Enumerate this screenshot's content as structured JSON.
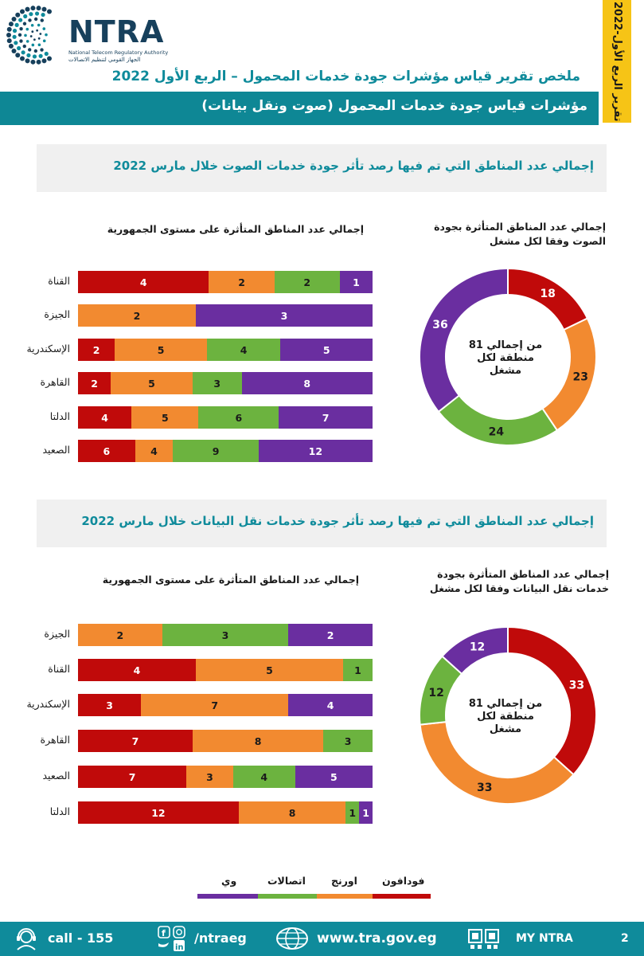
{
  "header": {
    "logo_text": "NTRA",
    "logo_sub_en": "National Telecom Regulatory Authority",
    "logo_sub_ar": "الجهاز القومي لتنظيم الاتصالات",
    "report_title": "ملخص تقرير قياس مؤشرات جودة خدمات المحمول – الربع الأول 2022",
    "bar_title": "مؤشرات قياس جودة خدمات المحمول (صوت ونقل بيانات)",
    "side_tab": "تقرير الربع الأول-2022"
  },
  "colors": {
    "vodafone": "#c00a0a",
    "orange": "#f28a30",
    "etisalat": "#6cb33f",
    "we": "#6a2ea0",
    "teal": "#0f8b9b"
  },
  "voice": {
    "section_title": "إجمالي عدد المناطق التي تم فيها رصد تأثر جودة خدمات الصوت خلال مارس 2022",
    "bar_chart_title": "إجمالي عدد المناطق المتأثرة على مستوى الجمهورية",
    "donut_title": "إجمالي عدد المناطق المتأثرة بجودة الصوت وفقا لكل مشغل",
    "donut_center": [
      "من إجمالي 81",
      "منطقة لكل",
      "مشغل"
    ]
  },
  "data": {
    "section_title": "إجمالي عدد المناطق التي تم فيها رصد تأثر جودة خدمات نقل البيانات خلال مارس 2022",
    "bar_chart_title": "إجمالي عدد المناطق المتأثرة على مستوى الجمهورية",
    "donut_title": "إجمالي عدد المناطق المتأثرة بجودة خدمات نقل البيانات وفقا لكل مشغل",
    "donut_center": [
      "من إجمالي 81",
      "منطقة لكل",
      "مشغل"
    ]
  },
  "legend": {
    "vodafone": "فودافون",
    "orange": "اورنج",
    "etisalat": "اتصالات",
    "we": "وي"
  },
  "footer": {
    "call": "call - 155",
    "social": "/ntraeg",
    "website": "www.tra.gov.eg",
    "app": "MY NTRA",
    "page_number": "2"
  },
  "chart_data": [
    {
      "type": "bar",
      "orientation": "horizontal-stacked",
      "title": "إجمالي عدد المناطق المتأثرة على مستوى الجمهورية",
      "categories": [
        "القناة",
        "الجيزة",
        "الإسكندرية",
        "القاهرة",
        "الدلتا",
        "الصعيد"
      ],
      "series": [
        {
          "name": "فودافون",
          "values": [
            4,
            0,
            2,
            2,
            4,
            6
          ]
        },
        {
          "name": "اورنج",
          "values": [
            2,
            2,
            5,
            5,
            5,
            4
          ]
        },
        {
          "name": "اتصالات",
          "values": [
            2,
            0,
            4,
            3,
            6,
            9
          ]
        },
        {
          "name": "وي",
          "values": [
            1,
            3,
            5,
            8,
            7,
            12
          ]
        }
      ]
    },
    {
      "type": "pie",
      "title": "إجمالي عدد المناطق المتأثرة بجودة الصوت وفقا لكل مشغل",
      "categories": [
        "فودافون",
        "اورنج",
        "اتصالات",
        "وي"
      ],
      "values": [
        18,
        23,
        24,
        36
      ]
    },
    {
      "type": "bar",
      "orientation": "horizontal-stacked",
      "title": "إجمالي عدد المناطق المتأثرة على مستوى الجمهورية",
      "categories": [
        "الجيزة",
        "القناة",
        "الإسكندرية",
        "القاهرة",
        "الصعيد",
        "الدلتا"
      ],
      "series": [
        {
          "name": "فودافون",
          "values": [
            0,
            4,
            3,
            7,
            7,
            12
          ]
        },
        {
          "name": "اورنج",
          "values": [
            2,
            5,
            7,
            8,
            3,
            8
          ]
        },
        {
          "name": "اتصالات",
          "values": [
            3,
            1,
            0,
            3,
            4,
            1
          ]
        },
        {
          "name": "وي",
          "values": [
            2,
            0,
            4,
            0,
            5,
            1
          ]
        }
      ]
    },
    {
      "type": "pie",
      "title": "إجمالي عدد المناطق المتأثرة بجودة خدمات نقل البيانات وفقا لكل مشغل",
      "categories": [
        "فودافون",
        "اورنج",
        "اتصالات",
        "وي"
      ],
      "values": [
        33,
        33,
        12,
        12
      ]
    }
  ]
}
